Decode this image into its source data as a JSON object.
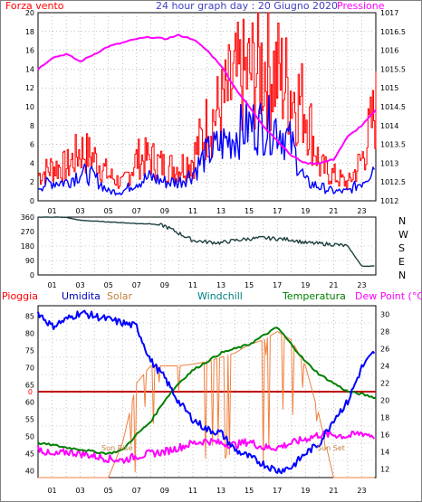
{
  "header": {
    "wind_label": "Forza vento",
    "title": "24 hour graph day : 20 Giugno 2020",
    "pressure_label": "Pressione"
  },
  "bottom_header": {
    "rain": "Pioggia",
    "humidity": "Umidita",
    "solar": "Solar",
    "windchill": "Windchill",
    "temperature": "Temperatura",
    "dewpoint": "Dew Point (°C)"
  },
  "annotations": {
    "sunrise": "Sun Rise",
    "sunset": "Sun Set"
  },
  "colors": {
    "wind_gust": "#ff0000",
    "wind_avg": "#0000ff",
    "pressure": "#ff00ff",
    "direction": "#1f4040",
    "humidity": "#0000ff",
    "solar": "#f08040",
    "windchill": "#008080",
    "temperature": "#008000",
    "dewpoint": "#ff00ff",
    "rain": "#c00000"
  },
  "chart_data": [
    {
      "type": "line",
      "title": "24 hour graph day : 20 Giugno 2020",
      "x_ticks": [
        "01",
        "03",
        "05",
        "07",
        "09",
        "11",
        "13",
        "15",
        "17",
        "19",
        "21",
        "23"
      ],
      "y_left": {
        "label": "Forza vento",
        "range": [
          0,
          20
        ],
        "ticks": [
          "0",
          "2",
          "4",
          "6",
          "8",
          "10",
          "12",
          "14",
          "16",
          "18",
          "20"
        ]
      },
      "y_right": {
        "label": "Pressione",
        "range": [
          1012,
          1017
        ],
        "ticks": [
          "1012",
          "1012.5",
          "1013",
          "1013.5",
          "1014",
          "1014.5",
          "1015",
          "1015.5",
          "1016",
          "1016.5",
          "1017"
        ]
      },
      "series": [
        {
          "name": "Forza vento",
          "axis": "left",
          "x": [
            0,
            1,
            2,
            3,
            4,
            5,
            6,
            7,
            8,
            9,
            10,
            11,
            12,
            13,
            14,
            15,
            16,
            17,
            18,
            19,
            20,
            21,
            22,
            23,
            24
          ],
          "values": [
            3,
            4,
            4,
            6,
            5,
            3,
            2,
            5,
            5,
            4,
            4,
            5,
            9,
            11,
            14,
            15,
            16,
            15,
            13,
            11,
            4,
            3,
            2,
            5,
            11
          ]
        },
        {
          "name": "Forza vento medio",
          "axis": "left",
          "x": [
            0,
            1,
            2,
            3,
            4,
            5,
            6,
            7,
            8,
            9,
            10,
            11,
            12,
            13,
            14,
            15,
            16,
            17,
            18,
            19,
            20,
            21,
            22,
            23,
            24
          ],
          "values": [
            1.5,
            2,
            2,
            3,
            2.5,
            1,
            1,
            2,
            2.5,
            2,
            2,
            3,
            5,
            6,
            7,
            8,
            8,
            8,
            6,
            2,
            1.5,
            1,
            1,
            2,
            4
          ]
        },
        {
          "name": "Pressione",
          "axis": "right",
          "x": [
            0,
            1,
            2,
            3,
            4,
            5,
            6,
            7,
            8,
            9,
            10,
            11,
            12,
            13,
            14,
            15,
            16,
            17,
            18,
            19,
            20,
            21,
            22,
            23,
            24
          ],
          "values": [
            1015.5,
            1015.8,
            1015.9,
            1015.7,
            1015.9,
            1016.1,
            1016.2,
            1016.3,
            1016.35,
            1016.3,
            1016.4,
            1016.3,
            1016.0,
            1015.6,
            1015.0,
            1014.5,
            1014.0,
            1013.6,
            1013.2,
            1013.0,
            1013.0,
            1013.1,
            1013.7,
            1014.0,
            1014.4
          ]
        }
      ]
    },
    {
      "type": "line",
      "y_left": {
        "range": [
          0,
          360
        ],
        "ticks": [
          "0",
          "90",
          "180",
          "270",
          "360"
        ]
      },
      "y_right_labels": [
        "N",
        "W",
        "S",
        "E",
        "N"
      ],
      "x_ticks": [
        "01",
        "03",
        "05",
        "07",
        "09",
        "11",
        "13",
        "15",
        "17",
        "19",
        "21",
        "23"
      ],
      "series": [
        {
          "name": "Direzione vento",
          "x": [
            0,
            1,
            2,
            3,
            4,
            5,
            6,
            7,
            8,
            9,
            10,
            11,
            12,
            13,
            14,
            15,
            16,
            17,
            18,
            19,
            20,
            21,
            22,
            23,
            24
          ],
          "values": [
            360,
            360,
            358,
            340,
            335,
            330,
            325,
            320,
            318,
            305,
            260,
            215,
            205,
            200,
            215,
            225,
            230,
            225,
            220,
            200,
            195,
            190,
            180,
            55,
            55
          ]
        }
      ]
    },
    {
      "type": "line",
      "x_ticks": [
        "01",
        "03",
        "05",
        "07",
        "09",
        "11",
        "13",
        "15",
        "17",
        "19",
        "21",
        "23"
      ],
      "y_left": {
        "label": "Umidita",
        "range": [
          38,
          88
        ],
        "ticks": [
          "40",
          "45",
          "50",
          "55",
          "60",
          "65",
          "70",
          "75",
          "80",
          "85"
        ]
      },
      "y_right": {
        "label": "Dew Point (°C)",
        "range": [
          11,
          31
        ],
        "ticks": [
          "12",
          "14",
          "16",
          "18",
          "20",
          "22",
          "24",
          "26",
          "28",
          "30"
        ]
      },
      "rain_value_label": "0",
      "series": [
        {
          "name": "Umidita",
          "axis": "left",
          "x": [
            0,
            1,
            2,
            3,
            4,
            5,
            6,
            7,
            8,
            9,
            10,
            11,
            12,
            13,
            14,
            15,
            16,
            17,
            18,
            19,
            20,
            21,
            22,
            23,
            24
          ],
          "values": [
            86,
            82,
            84,
            86,
            85,
            84,
            83,
            82,
            72,
            67,
            60,
            55,
            52,
            51,
            46,
            44,
            42,
            40,
            41,
            45,
            48,
            55,
            60,
            70,
            75
          ]
        },
        {
          "name": "Temperatura",
          "axis": "right",
          "x": [
            0,
            1,
            2,
            3,
            4,
            5,
            6,
            7,
            8,
            9,
            10,
            11,
            12,
            13,
            14,
            15,
            16,
            17,
            18,
            19,
            20,
            21,
            22,
            23,
            24
          ],
          "values": [
            15,
            14.8,
            14.5,
            14.3,
            14,
            13.8,
            14.2,
            16,
            17.5,
            20,
            22,
            23.5,
            24.5,
            25.5,
            26,
            26.5,
            27.5,
            28.5,
            26.5,
            24.5,
            23,
            22,
            21,
            20.7,
            20.3
          ]
        },
        {
          "name": "Windchill",
          "axis": "right",
          "x": [
            0,
            1,
            2,
            3,
            4,
            5,
            6,
            7,
            8,
            9,
            10,
            11,
            12,
            13,
            14,
            15,
            16,
            17,
            18,
            19,
            20,
            21,
            22,
            23,
            24
          ],
          "values": [
            15,
            14.8,
            14.5,
            14.3,
            14,
            13.8,
            14.2,
            16,
            17.5,
            20,
            22,
            23.5,
            24.5,
            25.5,
            26,
            26.5,
            27.5,
            28.5,
            26.5,
            24.5,
            23,
            22,
            21,
            20.7,
            20.3
          ]
        },
        {
          "name": "Solar",
          "axis": "right",
          "x": [
            0,
            1,
            2,
            3,
            4,
            5,
            6,
            7,
            8,
            9,
            10,
            11,
            12,
            13,
            14,
            15,
            16,
            17,
            18,
            19,
            20,
            21,
            22,
            23,
            24
          ],
          "values": [
            11,
            11,
            11,
            11,
            11,
            11,
            15,
            22,
            24,
            24,
            24,
            24.2,
            24.5,
            25,
            25.5,
            26.5,
            27,
            28,
            27,
            24,
            18,
            11,
            11,
            11,
            11
          ]
        },
        {
          "name": "Dew Point",
          "axis": "right",
          "x": [
            0,
            1,
            2,
            3,
            4,
            5,
            6,
            7,
            8,
            9,
            10,
            11,
            12,
            13,
            14,
            15,
            16,
            17,
            18,
            19,
            20,
            21,
            22,
            23,
            24
          ],
          "values": [
            14.5,
            13.5,
            14,
            13.8,
            13.5,
            13.2,
            13,
            13.5,
            13.8,
            14,
            14.5,
            15,
            15.3,
            15,
            14.8,
            15.2,
            14.5,
            14.5,
            15,
            15.5,
            16,
            16,
            15.8,
            16.2,
            15.8
          ]
        },
        {
          "name": "Pioggia",
          "axis": "rain",
          "values_constant": 0
        }
      ]
    }
  ]
}
